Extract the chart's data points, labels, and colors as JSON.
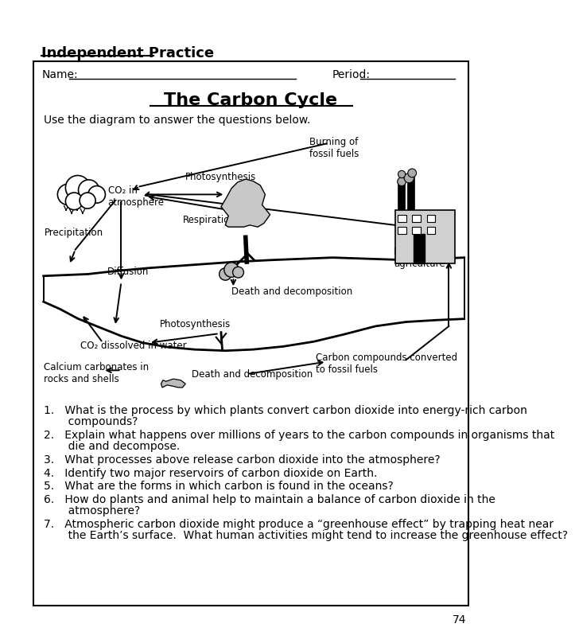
{
  "page_bg": "#ffffff",
  "border_color": "#000000",
  "title_above_box": "Independent Practice",
  "worksheet_title": "The Carbon Cycle",
  "name_label": "Name:",
  "period_label": "Period:",
  "instruction": "Use the diagram to answer the questions below.",
  "questions": [
    "1.   What is the process by which plants convert carbon dioxide into energy-rich carbon\n       compounds?",
    "2.   Explain what happens over millions of years to the carbon compounds in organisms that\n       die and decompose.",
    "3.   What processes above release carbon dioxide into the atmosphere?",
    "4.   Identify two major reservoirs of carbon dioxide on Earth.",
    "5.   What are the forms in which carbon is found in the oceans?",
    "6.   How do plants and animal help to maintain a balance of carbon dioxide in the\n       atmosphere?",
    "7.   Atmospheric carbon dioxide might produce a “greenhouse effect” by trapping heat near\n       the Earth’s surface.  What human activities might tend to increase the greenhouse effect?"
  ],
  "page_number": "74",
  "diagram_labels": {
    "burning_fossil_fuels": "Burning of\nfossil fuels",
    "co2_atmosphere": "CO₂ in\natmosphere",
    "photosynthesis_top": "Photosynthesis",
    "precipitation": "Precipitation",
    "respiration": "Respiration",
    "industry": "Industry and\nagriculture",
    "diffusion": "Diffusion",
    "death_decomp_top": "Death and decomposition",
    "photosynthesis_bottom": "Photosynthesis",
    "co2_dissolved": "CO₂ dissolved in water",
    "calcium_carbonates": "Calcium carbonates in\nrocks and shells",
    "death_decomp_bottom": "Death and decomposition",
    "carbon_compounds": "Carbon compounds converted\nto fossil fuels"
  }
}
